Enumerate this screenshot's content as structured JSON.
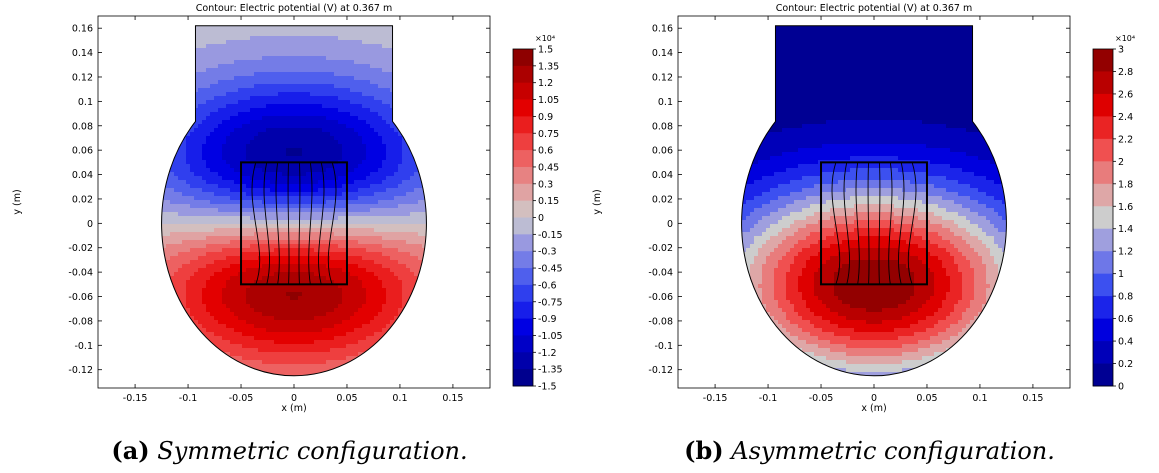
{
  "figure": {
    "panels": [
      {
        "id": "a",
        "title": "Contour: Electric potential (V) at 0.367 m",
        "caption_tag": "(a)",
        "caption_text": "Symmetric configuration."
      },
      {
        "id": "b",
        "title": "Contour: Electric potential (V) at 0.367 m",
        "caption_tag": "(b)",
        "caption_text": "Asymmetric configuration."
      }
    ]
  },
  "chart_data": [
    {
      "type": "heatmap",
      "title": "Contour: Electric potential (V) at 0.367 m",
      "xlabel": "x (m)",
      "ylabel": "y (m)",
      "xlim": [
        -0.185,
        0.185
      ],
      "ylim": [
        -0.135,
        0.17
      ],
      "x_ticks": [
        -0.15,
        -0.1,
        -0.05,
        0,
        0.05,
        0.1,
        0.15
      ],
      "x_tick_labels": [
        "-0.15",
        "-0.1",
        "-0.05",
        "0",
        "0.05",
        "0.1",
        "0.15"
      ],
      "y_ticks": [
        0.16,
        0.14,
        0.12,
        0.1,
        0.08,
        0.06,
        0.04,
        0.02,
        0,
        -0.02,
        -0.04,
        -0.06,
        -0.08,
        -0.1,
        -0.12
      ],
      "y_tick_labels": [
        "0.16",
        "0.14",
        "0.12",
        "0.1",
        "0.08",
        "0.06",
        "0.04",
        "0.02",
        "0",
        "-0.02",
        "-0.04",
        "-0.06",
        "-0.08",
        "-0.1",
        "-0.12"
      ],
      "colorbar": {
        "multiplier": "×10⁴",
        "min": -1.5,
        "max": 1.5,
        "ticks": [
          1.5,
          1.35,
          1.2,
          1.05,
          0.9,
          0.75,
          0.6,
          0.45,
          0.3,
          0.15,
          0,
          -0.15,
          -0.3,
          -0.45,
          -0.6,
          -0.75,
          -0.9,
          -1.05,
          -1.2,
          -1.35,
          -1.5
        ],
        "tick_labels": [
          "1.5",
          "1.35",
          "1.2",
          "1.05",
          "0.9",
          "0.75",
          "0.6",
          "0.45",
          "0.3",
          "0.15",
          "0",
          "-0.15",
          "-0.3",
          "-0.45",
          "-0.6",
          "-0.75",
          "-0.9",
          "-1.05",
          "-1.2",
          "-1.35",
          "-1.5"
        ]
      },
      "field": {
        "positive_center": [
          0,
          -0.05
        ],
        "negative_center": [
          0,
          0.05
        ],
        "peak": 1.5,
        "symmetric": true
      },
      "geometry": {
        "domain": "circle r=0.125 centered (0,0) with neck |x|<=0.093 up to y=0.162",
        "box": {
          "x": [
            -0.05,
            0.05
          ],
          "y": [
            -0.05,
            0.05
          ]
        },
        "field_lines": 8
      }
    },
    {
      "type": "heatmap",
      "title": "Contour: Electric potential (V) at 0.367 m",
      "xlabel": "x (m)",
      "ylabel": "y (m)",
      "xlim": [
        -0.185,
        0.185
      ],
      "ylim": [
        -0.135,
        0.17
      ],
      "x_ticks": [
        -0.15,
        -0.1,
        -0.05,
        0,
        0.05,
        0.1,
        0.15
      ],
      "x_tick_labels": [
        "-0.15",
        "-0.1",
        "-0.05",
        "0",
        "0.05",
        "0.1",
        "0.15"
      ],
      "y_ticks": [
        0.16,
        0.14,
        0.12,
        0.1,
        0.08,
        0.06,
        0.04,
        0.02,
        0,
        -0.02,
        -0.04,
        -0.06,
        -0.08,
        -0.1,
        -0.12
      ],
      "y_tick_labels": [
        "0.16",
        "0.14",
        "0.12",
        "0.1",
        "0.08",
        "0.06",
        "0.04",
        "0.02",
        "0",
        "-0.02",
        "-0.04",
        "-0.06",
        "-0.08",
        "-0.1",
        "-0.12"
      ],
      "colorbar": {
        "multiplier": "×10⁴",
        "min": 0,
        "max": 3,
        "ticks": [
          3,
          2.8,
          2.6,
          2.4,
          2.2,
          2,
          1.8,
          1.6,
          1.4,
          1.2,
          1,
          0.8,
          0.6,
          0.4,
          0.2,
          0
        ],
        "tick_labels": [
          "3",
          "2.8",
          "2.6",
          "2.4",
          "2.2",
          "2",
          "1.8",
          "1.6",
          "1.4",
          "1.2",
          "1",
          "0.8",
          "0.6",
          "0.4",
          "0.2",
          "0"
        ]
      },
      "field": {
        "positive_center": [
          0,
          -0.05
        ],
        "peak": 3,
        "symmetric": false
      },
      "geometry": {
        "domain": "circle r=0.125 centered (0,0) with neck |x|<=0.093 up to y=0.162",
        "box": {
          "x": [
            -0.05,
            0.05
          ],
          "y": [
            -0.05,
            0.05
          ]
        },
        "field_lines": 8
      }
    }
  ]
}
